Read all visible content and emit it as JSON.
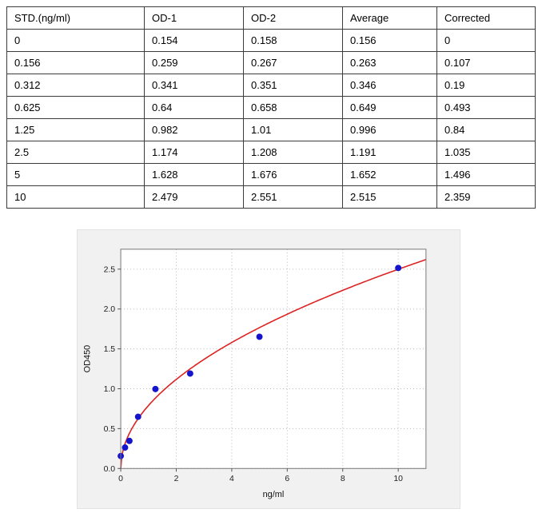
{
  "table": {
    "columns": [
      "STD.(ng/ml)",
      "OD-1",
      "OD-2",
      "Average",
      "Corrected"
    ],
    "rows": [
      [
        "0",
        "0.154",
        "0.158",
        "0.156",
        "0"
      ],
      [
        "0.156",
        "0.259",
        "0.267",
        "0.263",
        "0.107"
      ],
      [
        "0.312",
        "0.341",
        "0.351",
        "0.346",
        "0.19"
      ],
      [
        "0.625",
        "0.64",
        "0.658",
        "0.649",
        "0.493"
      ],
      [
        "1.25",
        "0.982",
        "1.01",
        "0.996",
        "0.84"
      ],
      [
        "2.5",
        "1.174",
        "1.208",
        "1.191",
        "1.035"
      ],
      [
        "5",
        "1.628",
        "1.676",
        "1.652",
        "1.496"
      ],
      [
        "10",
        "2.479",
        "2.551",
        "2.515",
        "2.359"
      ]
    ]
  },
  "chart_data": {
    "type": "scatter",
    "title": "",
    "xlabel": "ng/ml",
    "ylabel": "OD450",
    "x": [
      0,
      0.156,
      0.312,
      0.625,
      1.25,
      2.5,
      5,
      10
    ],
    "y": [
      0.156,
      0.263,
      0.346,
      0.649,
      0.996,
      1.191,
      1.652,
      2.515
    ],
    "xlim": [
      0,
      11
    ],
    "ylim": [
      0,
      2.75
    ],
    "xticks": [
      0,
      2,
      4,
      6,
      8,
      10
    ],
    "xtick_labels": [
      "0",
      "2",
      "4",
      "6",
      "8",
      "10"
    ],
    "yticks": [
      0,
      0.5,
      1,
      1.5,
      2,
      2.5
    ],
    "ytick_labels": [
      "0.0",
      "0.5",
      "1.0",
      "1.5",
      "2.0",
      "2.5"
    ],
    "grid": true,
    "legend_position": "none",
    "marker_color": "#1414cc",
    "curve_color": "#dd2222",
    "fit": {
      "type": "power",
      "a": 0.79,
      "b": 0.5
    }
  }
}
